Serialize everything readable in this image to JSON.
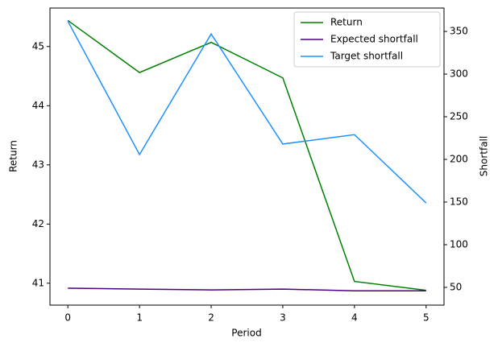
{
  "chart_data": {
    "type": "line",
    "x": [
      0,
      1,
      2,
      3,
      4,
      5
    ],
    "x_label": "Period",
    "y_label": "Return",
    "y2_label": "Shortfall",
    "xlim": [
      -0.25,
      5.25
    ],
    "xticks": [
      0,
      1,
      2,
      3,
      4,
      5
    ],
    "ylim": [
      40.63,
      45.65
    ],
    "yticks": [
      41,
      42,
      43,
      44,
      45
    ],
    "y2lim": [
      29.2,
      377.4
    ],
    "y2ticks": [
      50,
      100,
      150,
      200,
      250,
      300,
      350
    ],
    "legend": "upper right",
    "series": [
      {
        "name": "Return",
        "color": "#008000",
        "values": [
          45.44,
          44.56,
          45.07,
          44.47,
          41.03,
          40.88
        ]
      },
      {
        "name": "Expected shortfall",
        "color": "#4b0082",
        "axis": "y2",
        "values": [
          49,
          48,
          47,
          48,
          46,
          46
        ]
      },
      {
        "name": "Target shortfall",
        "color": "#1e90ff",
        "axis": "y2",
        "values": [
          362,
          205.7,
          347,
          218,
          229,
          149
        ]
      }
    ]
  }
}
